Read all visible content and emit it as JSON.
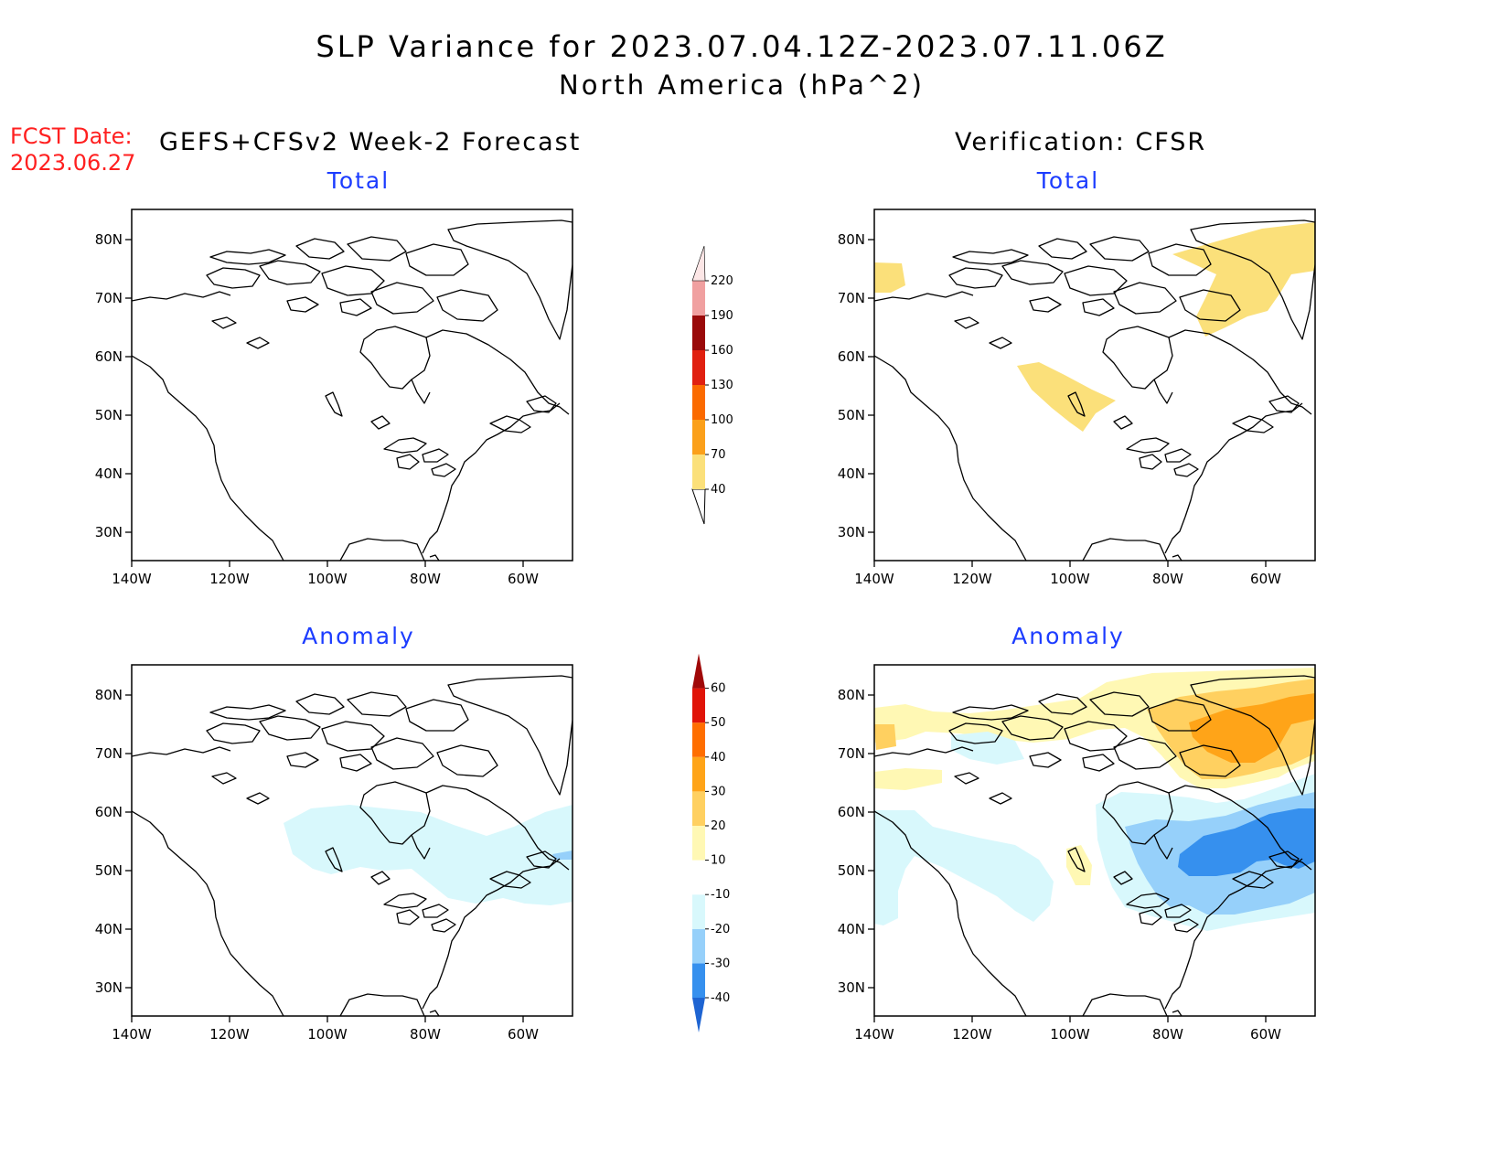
{
  "header": {
    "title": "SLP Variance for 2023.07.04.12Z-2023.07.11.06Z",
    "subtitle": "North America (hPa^2)",
    "fcst_label": "FCST Date:",
    "fcst_date": "2023.06.27",
    "left_column": "GEFS+CFSv2 Week-2 Forecast",
    "right_column": "Verification: CFSR"
  },
  "panels": {
    "fc_total": "Total",
    "fc_anom": "Anomaly",
    "ver_total": "Total",
    "ver_anom": "Anomaly"
  },
  "axes": {
    "lat_labels": [
      "80N",
      "70N",
      "60N",
      "50N",
      "40N",
      "30N"
    ],
    "lon_labels": [
      "140W",
      "120W",
      "100W",
      "80W",
      "60W"
    ],
    "lat_range": [
      25,
      85
    ],
    "lon_range": [
      -140,
      -50
    ]
  },
  "colorbars": {
    "total": {
      "levels": [
        "40",
        "70",
        "100",
        "130",
        "160",
        "190",
        "220"
      ],
      "colors": [
        "#fbe07a",
        "#fba01a",
        "#fb6a00",
        "#e02010",
        "#9a0a0a",
        "#f0a0a0",
        "#fce6e6"
      ]
    },
    "anomaly": {
      "levels": [
        "-40",
        "-30",
        "-20",
        "-10",
        "10",
        "20",
        "30",
        "40",
        "50",
        "60"
      ],
      "colors": [
        "#1e64d2",
        "#3690ee",
        "#96d0fa",
        "#d8f8fc",
        "#ffffff",
        "#fff8b4",
        "#ffd060",
        "#ffa418",
        "#ff6e00",
        "#e01408",
        "#a00808"
      ]
    }
  }
}
